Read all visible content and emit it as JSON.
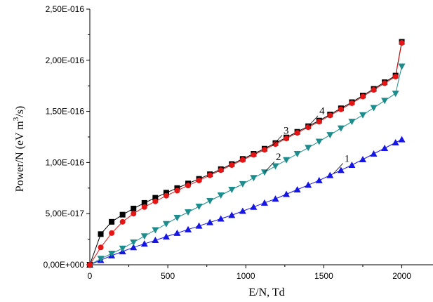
{
  "chart_data": {
    "type": "scatter",
    "xlabel": "E/N,  Td",
    "ylabel": "Power/N (eV m",
    "ylabel_sup": "3",
    "ylabel_tail": "/s)",
    "xlim": [
      0,
      2200
    ],
    "ylim": [
      0,
      2.5e-16
    ],
    "xticks": [
      0,
      500,
      1000,
      1500,
      2000
    ],
    "xtick_labels": [
      "0",
      "500",
      "1000",
      "1500",
      "2000"
    ],
    "yticks": [
      0,
      5e-17,
      1e-16,
      1.5e-16,
      2e-16,
      2.5e-16
    ],
    "ytick_labels": [
      "0,00E+000",
      "5,00E-017",
      "1,00E-016",
      "1,50E-016",
      "2,00E-016",
      "2,50E-016"
    ],
    "grid": false,
    "legend": "none",
    "series": [
      {
        "name": "1",
        "marker": "triangle-up",
        "color": "#1515e6",
        "x": [
          0,
          70,
          140,
          210,
          280,
          350,
          420,
          490,
          560,
          630,
          700,
          770,
          840,
          910,
          980,
          1050,
          1120,
          1190,
          1260,
          1330,
          1400,
          1470,
          1540,
          1610,
          1680,
          1750,
          1820,
          1890,
          1960,
          2000
        ],
        "y": [
          0,
          4.5e-18,
          9e-18,
          1.3e-17,
          1.7e-17,
          2.05e-17,
          2.4e-17,
          2.75e-17,
          3.1e-17,
          3.45e-17,
          3.8e-17,
          4.15e-17,
          4.5e-17,
          4.85e-17,
          5.25e-17,
          5.65e-17,
          6.05e-17,
          6.45e-17,
          6.9e-17,
          7.35e-17,
          7.8e-17,
          8.25e-17,
          8.75e-17,
          9.25e-17,
          9.75e-17,
          1.03e-16,
          1.085e-16,
          1.14e-16,
          1.195e-16,
          1.225e-16
        ]
      },
      {
        "name": "2",
        "marker": "triangle-down",
        "color": "#1d8c8c",
        "x": [
          0,
          70,
          140,
          210,
          280,
          350,
          420,
          490,
          560,
          630,
          700,
          770,
          840,
          910,
          980,
          1050,
          1120,
          1190,
          1260,
          1330,
          1400,
          1470,
          1540,
          1610,
          1680,
          1750,
          1820,
          1890,
          1960,
          2000
        ],
        "y": [
          0,
          6e-18,
          1.1e-17,
          1.6e-17,
          2.2e-17,
          2.8e-17,
          3.4e-17,
          4e-17,
          4.6e-17,
          5.15e-17,
          5.7e-17,
          6.25e-17,
          6.8e-17,
          7.35e-17,
          7.9e-17,
          8.5e-17,
          9.05e-17,
          9.65e-17,
          1.025e-16,
          1.085e-16,
          1.145e-16,
          1.205e-16,
          1.27e-16,
          1.335e-16,
          1.4e-16,
          1.465e-16,
          1.535e-16,
          1.605e-16,
          1.675e-16,
          1.94e-16
        ]
      },
      {
        "name": "3",
        "marker": "circle",
        "color": "#e61515",
        "x": [
          0,
          70,
          140,
          210,
          280,
          350,
          420,
          490,
          560,
          630,
          700,
          770,
          840,
          910,
          980,
          1050,
          1120,
          1190,
          1260,
          1330,
          1400,
          1470,
          1540,
          1610,
          1680,
          1750,
          1820,
          1890,
          1960,
          2000
        ],
        "y": [
          0,
          1.7e-17,
          3.1e-17,
          4.2e-17,
          5e-17,
          5.65e-17,
          6.2e-17,
          6.75e-17,
          7.25e-17,
          7.75e-17,
          8.25e-17,
          8.75e-17,
          9.25e-17,
          9.75e-17,
          1.025e-16,
          1.075e-16,
          1.125e-16,
          1.18e-16,
          1.235e-16,
          1.29e-16,
          1.345e-16,
          1.4e-16,
          1.46e-16,
          1.52e-16,
          1.58e-16,
          1.645e-16,
          1.71e-16,
          1.775e-16,
          1.84e-16,
          2.17e-16
        ]
      },
      {
        "name": "4",
        "marker": "square",
        "color": "#000000",
        "x": [
          0,
          70,
          140,
          210,
          280,
          350,
          420,
          490,
          560,
          630,
          700,
          770,
          840,
          910,
          980,
          1050,
          1120,
          1190,
          1260,
          1330,
          1400,
          1470,
          1540,
          1610,
          1680,
          1750,
          1820,
          1890,
          1960,
          2000
        ],
        "y": [
          0,
          3e-17,
          4.2e-17,
          4.9e-17,
          5.5e-17,
          6.05e-17,
          6.55e-17,
          7.05e-17,
          7.5e-17,
          7.95e-17,
          8.4e-17,
          8.85e-17,
          9.35e-17,
          9.85e-17,
          1.035e-16,
          1.085e-16,
          1.135e-16,
          1.19e-16,
          1.245e-16,
          1.3e-16,
          1.355e-16,
          1.41e-16,
          1.47e-16,
          1.53e-16,
          1.59e-16,
          1.655e-16,
          1.72e-16,
          1.785e-16,
          1.85e-16,
          2.18e-16
        ]
      }
    ],
    "annotations": [
      {
        "text": "1",
        "series": "1",
        "at_x": 1560
      },
      {
        "text": "2",
        "series": "2",
        "at_x": 1120
      },
      {
        "text": "3",
        "series": "3",
        "at_x": 1170
      },
      {
        "text": "4",
        "series": "4",
        "at_x": 1400
      }
    ]
  }
}
